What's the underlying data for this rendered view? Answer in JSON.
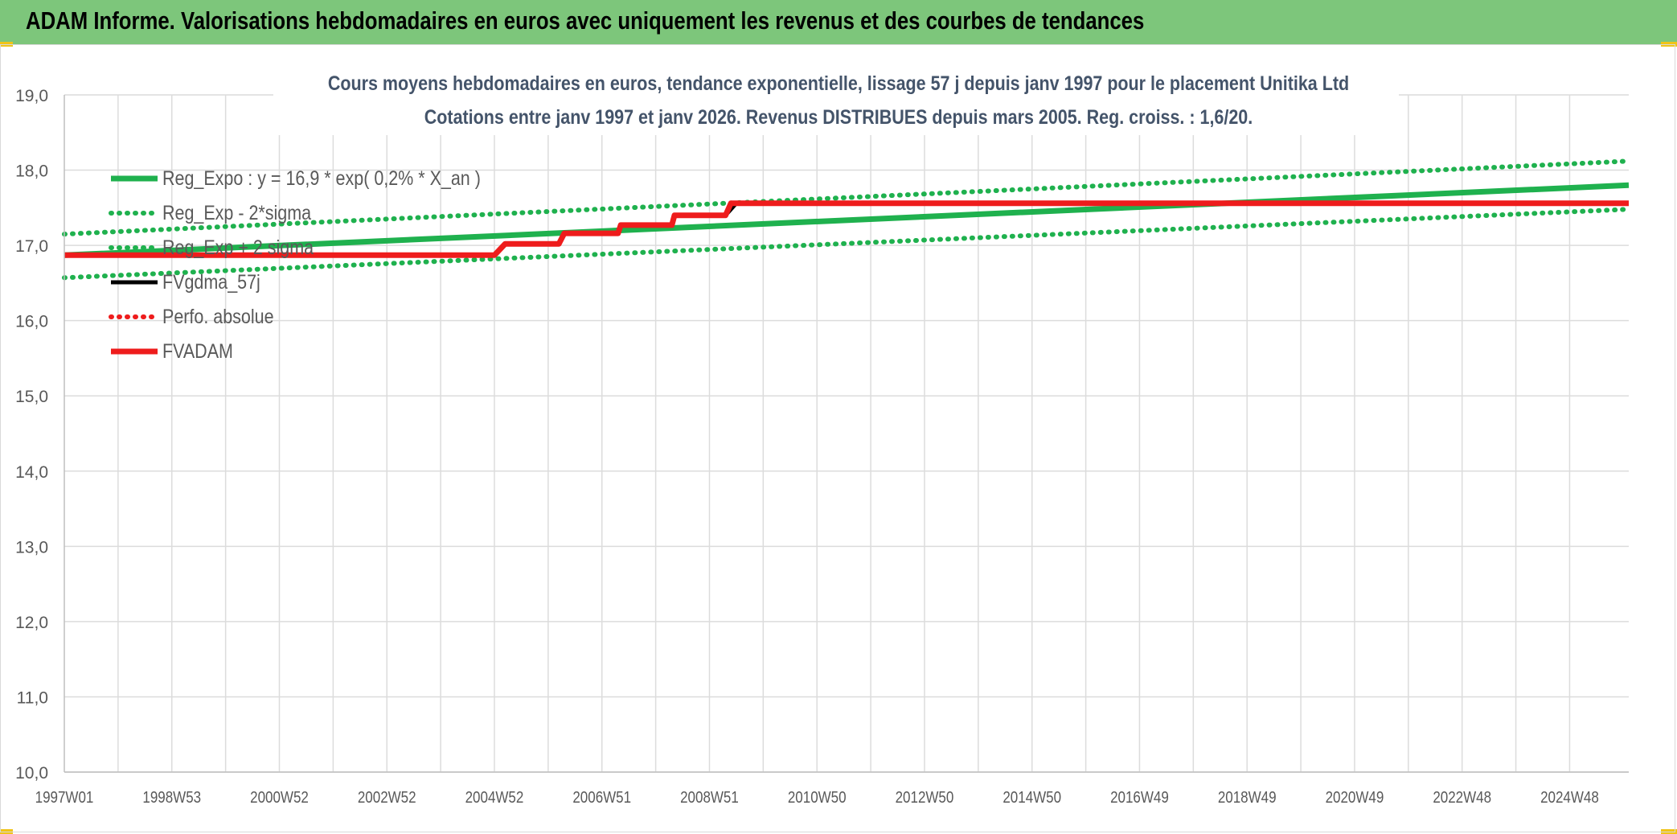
{
  "header": {
    "title": "ADAM Informe. Valorisations hebdomadaires en euros avec uniquement les revenus et des courbes de tendances"
  },
  "colors": {
    "header_bg": "#7dc67b",
    "green": "#1fb14e",
    "red": "#ee1c1c",
    "black": "#000000",
    "grid": "#dcdcdc",
    "axis_text": "#595959",
    "title_text": "#44546a"
  },
  "chart_data": {
    "type": "line",
    "title": "Cours moyens hebdomadaires en euros, tendance exponentielle, lissage 57 j depuis janv 1997 pour le placement Unitika Ltd",
    "subtitle": "Cotations entre janv 1997 et janv 2026. Revenus DISTRIBUES depuis mars 2005. Reg. croiss. : 1,6/20.",
    "ylim": [
      10,
      19
    ],
    "yticks": [
      "10,0",
      "11,0",
      "12,0",
      "13,0",
      "14,0",
      "15,0",
      "16,0",
      "17,0",
      "18,0",
      "19,0"
    ],
    "xlim": [
      1997.0,
      2026.1
    ],
    "xticks": [
      {
        "label": "1997W01",
        "x": 1997.0
      },
      {
        "label": "1998W53",
        "x": 1999.0
      },
      {
        "label": "2000W52",
        "x": 2001.0
      },
      {
        "label": "2002W52",
        "x": 2003.0
      },
      {
        "label": "2004W52",
        "x": 2005.0
      },
      {
        "label": "2006W51",
        "x": 2007.0
      },
      {
        "label": "2008W51",
        "x": 2009.0
      },
      {
        "label": "2010W50",
        "x": 2011.0
      },
      {
        "label": "2012W50",
        "x": 2013.0
      },
      {
        "label": "2014W50",
        "x": 2015.0
      },
      {
        "label": "2016W49",
        "x": 2017.0
      },
      {
        "label": "2018W49",
        "x": 2019.0
      },
      {
        "label": "2020W49",
        "x": 2021.0
      },
      {
        "label": "2022W48",
        "x": 2023.0
      },
      {
        "label": "2024W48",
        "x": 2025.0
      }
    ],
    "legend_position": "top-left",
    "series": [
      {
        "name": "Reg_Expo : y = 16,9 * exp( 0,2% *  X_an )",
        "color": "#1fb14e",
        "style": "solid",
        "x": [
          1997.0,
          2026.1
        ],
        "y": [
          16.87,
          17.8
        ]
      },
      {
        "name": "Reg_Exp - 2*sigma",
        "color": "#1fb14e",
        "style": "dotted",
        "x": [
          1997.0,
          2026.1
        ],
        "y": [
          16.57,
          17.48
        ]
      },
      {
        "name": "Reg_Exp + 2 sigma",
        "color": "#1fb14e",
        "style": "dotted",
        "x": [
          1997.0,
          2026.1
        ],
        "y": [
          17.15,
          18.12
        ]
      },
      {
        "name": "FVgdma_57j",
        "color": "#000000",
        "style": "solid",
        "x": [
          1997.0,
          2005.0,
          2005.2,
          2006.2,
          2006.3,
          2007.3,
          2007.35,
          2008.3,
          2008.35,
          2009.3,
          2009.5,
          2026.1
        ],
        "y": [
          16.87,
          16.87,
          17.02,
          17.02,
          17.16,
          17.16,
          17.27,
          17.27,
          17.4,
          17.4,
          17.56,
          17.56
        ]
      },
      {
        "name": "Perfo. absolue",
        "color": "#ee1c1c",
        "style": "dotted",
        "x": [],
        "y": []
      },
      {
        "name": "FVADAM",
        "color": "#ee1c1c",
        "style": "solid",
        "x": [
          1997.0,
          2005.0,
          2005.2,
          2006.2,
          2006.3,
          2007.3,
          2007.35,
          2008.3,
          2008.35,
          2009.3,
          2009.4,
          2026.1
        ],
        "y": [
          16.87,
          16.87,
          17.02,
          17.02,
          17.16,
          17.16,
          17.27,
          17.27,
          17.4,
          17.4,
          17.56,
          17.56
        ]
      }
    ]
  }
}
